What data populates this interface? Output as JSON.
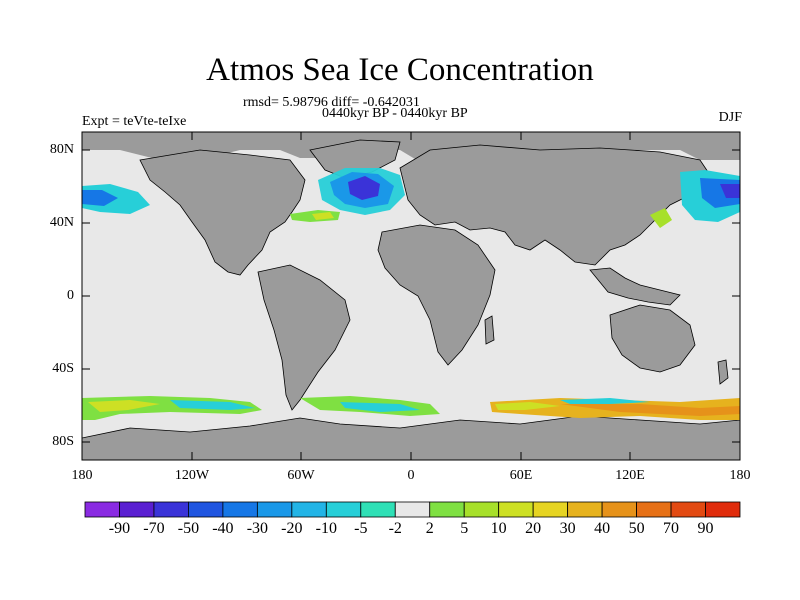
{
  "header": {
    "title": "Atmos Sea Ice Concentration",
    "stats": "rmsd= 5.98796 diff= -0.642031",
    "period": "0440kyr BP - 0440kyr BP",
    "experiment": "Expt = teVte-teIxe",
    "season": "DJF"
  },
  "axes": {
    "lat_ticks": [
      "80N",
      "40N",
      "0",
      "40S",
      "80S"
    ],
    "lon_ticks": [
      "180",
      "120W",
      "60W",
      "0",
      "60E",
      "120E",
      "180"
    ]
  },
  "colorbar": {
    "labels": [
      "-90",
      "-70",
      "-50",
      "-40",
      "-30",
      "-20",
      "-10",
      "-5",
      "-2",
      "2",
      "5",
      "10",
      "20",
      "30",
      "40",
      "50",
      "70",
      "90"
    ],
    "colors": [
      "#8a2be2",
      "#5a1fd1",
      "#3a33d8",
      "#1f55e0",
      "#1677e6",
      "#1a98e8",
      "#22b4e6",
      "#27cfd8",
      "#2fe0b6",
      "#e8e8e8",
      "#7fe042",
      "#a7e02a",
      "#cde024",
      "#e6d422",
      "#e6b21e",
      "#e6921a",
      "#e67016",
      "#e24a12",
      "#e02c0c"
    ]
  },
  "map_colors": {
    "land": "#9b9b9b",
    "ocean": "#e8e8e8"
  }
}
